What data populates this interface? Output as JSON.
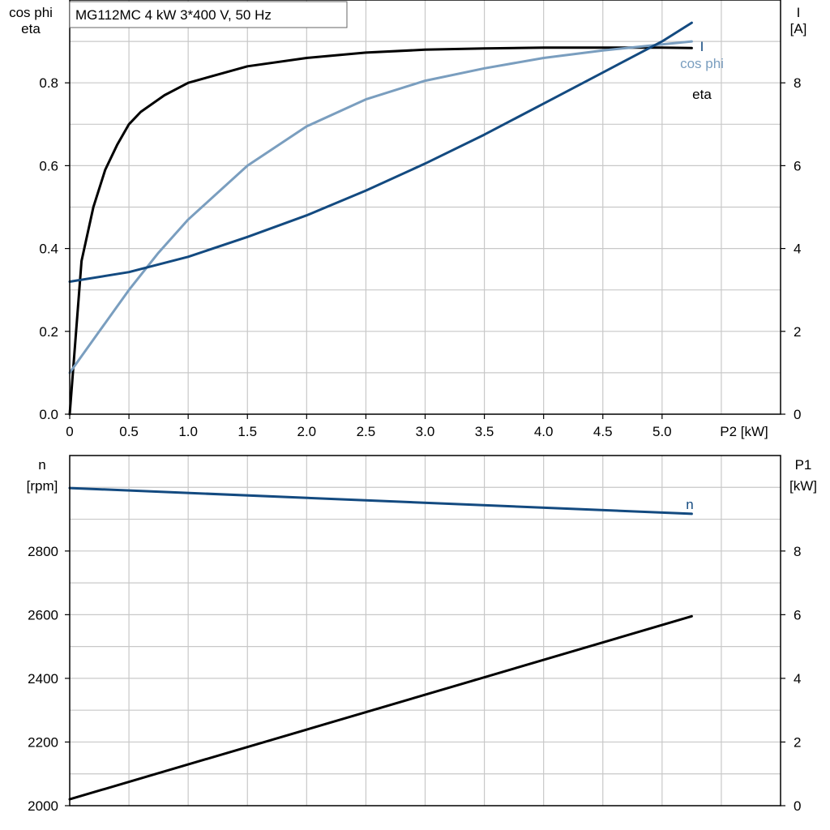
{
  "title": "MG112MC   4 kW   3*400 V, 50 Hz",
  "colors": {
    "eta": "#000000",
    "cos_phi": "#7a9ebf",
    "I": "#134a80",
    "n": "#134a80",
    "P1": "#000000",
    "grid": "#c8c8c8"
  },
  "chart_data": [
    {
      "type": "line",
      "x_axis_label": "P2 [kW]",
      "xlim": [
        0,
        6
      ],
      "xticks": [
        "0",
        "0.5",
        "1.0",
        "1.5",
        "2.0",
        "2.5",
        "3.0",
        "3.5",
        "4.0",
        "4.5",
        "5.0"
      ],
      "left_axis_label": [
        "cos phi",
        "eta"
      ],
      "left_ylim": [
        0,
        1.0
      ],
      "left_yticks": [
        "0.0",
        "0.2",
        "0.4",
        "0.6",
        "0.8"
      ],
      "right_axis_label": [
        "I",
        "[A]"
      ],
      "right_ylim": [
        0,
        10
      ],
      "right_yticks": [
        "0",
        "2",
        "4",
        "6",
        "8"
      ],
      "grid": true,
      "series": [
        {
          "name": "eta",
          "axis": "left",
          "x": [
            0,
            0.1,
            0.2,
            0.3,
            0.4,
            0.5,
            0.6,
            0.8,
            1.0,
            1.5,
            2.0,
            2.5,
            3.0,
            3.5,
            4.0,
            4.5,
            5.0,
            5.25
          ],
          "y": [
            0.0,
            0.37,
            0.5,
            0.59,
            0.65,
            0.7,
            0.73,
            0.77,
            0.8,
            0.84,
            0.86,
            0.873,
            0.88,
            0.883,
            0.885,
            0.885,
            0.885,
            0.884
          ]
        },
        {
          "name": "cos phi",
          "axis": "left",
          "x": [
            0,
            0.25,
            0.5,
            0.75,
            1.0,
            1.5,
            2.0,
            2.5,
            3.0,
            3.5,
            4.0,
            4.5,
            5.0,
            5.25
          ],
          "y": [
            0.1,
            0.2,
            0.3,
            0.39,
            0.47,
            0.6,
            0.695,
            0.76,
            0.805,
            0.835,
            0.86,
            0.878,
            0.893,
            0.9
          ]
        },
        {
          "name": "I",
          "axis": "right",
          "x": [
            0,
            0.5,
            1.0,
            1.5,
            2.0,
            2.5,
            3.0,
            3.5,
            4.0,
            4.5,
            5.0,
            5.25
          ],
          "y": [
            3.2,
            3.43,
            3.8,
            4.28,
            4.8,
            5.4,
            6.05,
            6.75,
            7.5,
            8.25,
            9.0,
            9.45
          ]
        }
      ]
    },
    {
      "type": "line",
      "xlim": [
        0,
        6
      ],
      "left_axis_label": [
        "n",
        "[rpm]"
      ],
      "left_ylim": [
        2000,
        3100
      ],
      "left_yticks": [
        "2000",
        "2200",
        "2400",
        "2600",
        "2800"
      ],
      "right_axis_label": [
        "P1",
        "[kW]"
      ],
      "right_ylim": [
        0,
        11
      ],
      "right_yticks": [
        "0",
        "2",
        "4",
        "6",
        "8"
      ],
      "grid": true,
      "series": [
        {
          "name": "n",
          "axis": "left",
          "x": [
            0,
            5.25
          ],
          "y": [
            2998,
            2917
          ]
        },
        {
          "axis": "right",
          "x": [
            0,
            5.25
          ],
          "y": [
            0.2,
            5.95
          ]
        }
      ]
    }
  ]
}
